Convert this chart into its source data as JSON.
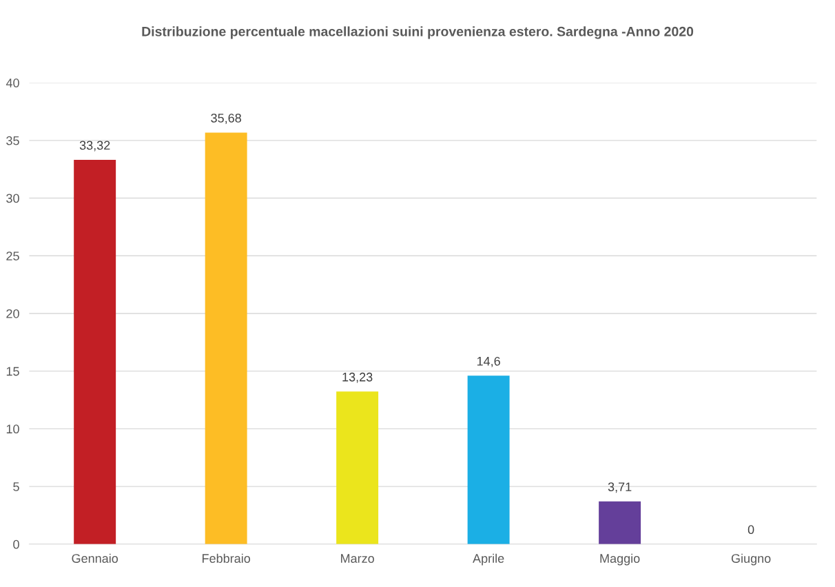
{
  "chart_data": {
    "type": "bar",
    "title": "Distribuzione percentuale macellazioni suini provenienza estero. Sardegna -Anno 2020",
    "categories": [
      "Gennaio",
      "Febbraio",
      "Marzo",
      "Aprile",
      "Maggio",
      "Giugno"
    ],
    "values": [
      33.32,
      35.68,
      13.23,
      14.6,
      3.71,
      0
    ],
    "colors": [
      "#c21f25",
      "#fdbd25",
      "#ebe51c",
      "#1bafe5",
      "#643f9a",
      "#8faadc"
    ],
    "value_labels": [
      "33,32",
      "35,68",
      "13,23",
      "14,6",
      "3,71",
      "0"
    ],
    "ylim": [
      0,
      40
    ],
    "yticks": [
      0,
      5,
      10,
      15,
      20,
      25,
      30,
      35,
      40
    ],
    "grid": "y"
  }
}
